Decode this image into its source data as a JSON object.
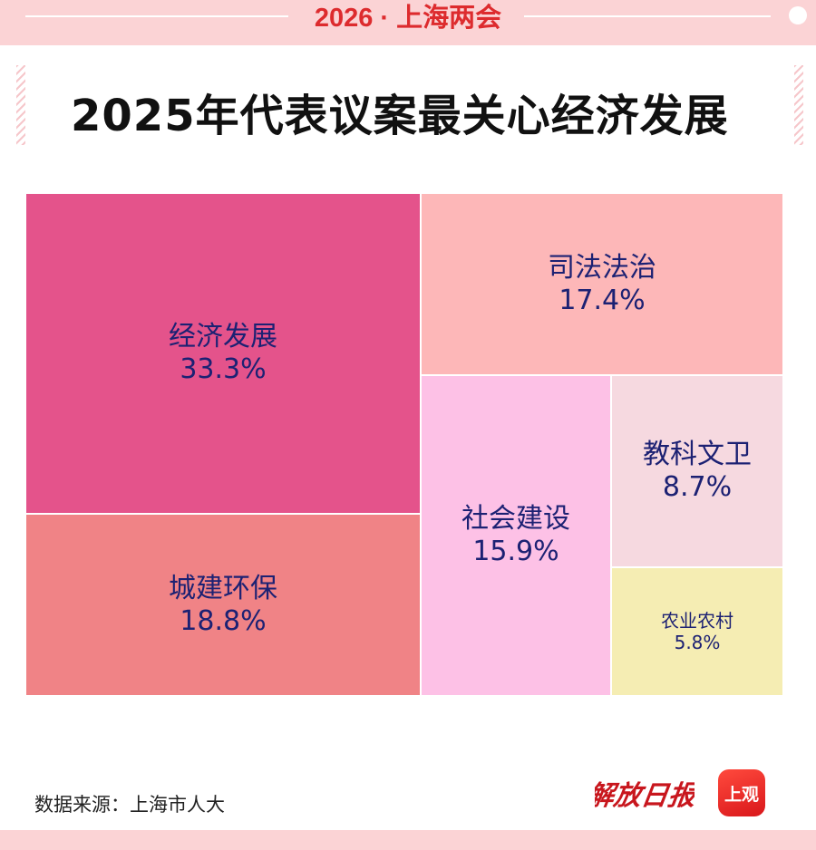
{
  "banner": {
    "text": "2026 · 上海两会"
  },
  "chart_data": {
    "type": "treemap",
    "title": "2025年代表议案最关心经济发展",
    "items": [
      {
        "label": "经济发展",
        "value": 33.3,
        "value_label": "33.3%",
        "color": "#e4538b"
      },
      {
        "label": "城建环保",
        "value": 18.8,
        "value_label": "18.8%",
        "color": "#f08386"
      },
      {
        "label": "司法法治",
        "value": 17.4,
        "value_label": "17.4%",
        "color": "#fdb7b8"
      },
      {
        "label": "社会建设",
        "value": 15.9,
        "value_label": "15.9%",
        "color": "#fdc1e6"
      },
      {
        "label": "教科文卫",
        "value": 8.7,
        "value_label": "8.7%",
        "color": "#f6d9e0"
      },
      {
        "label": "农业农村",
        "value": 5.8,
        "value_label": "5.8%",
        "color": "#f5edb3"
      }
    ],
    "label_color": "#1c2173"
  },
  "footer": {
    "source": "数据来源：上海市人大",
    "brand_text": "解放日报",
    "app_logo": "上观"
  }
}
